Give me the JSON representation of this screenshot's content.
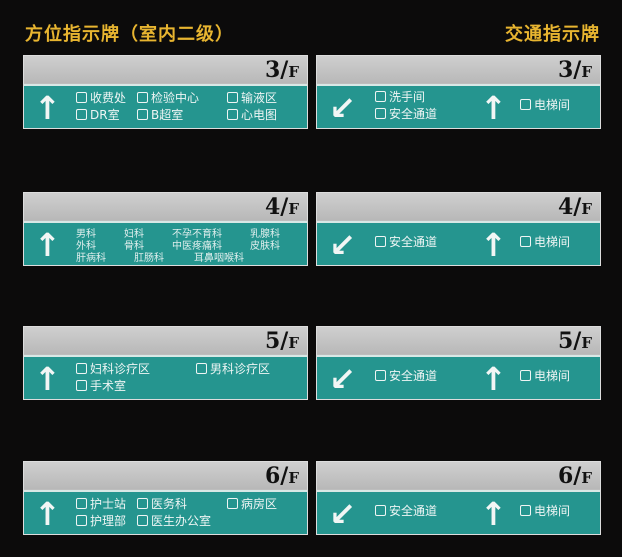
{
  "headings": {
    "left": "方位指示牌（室内二级）",
    "right": "交通指示牌"
  },
  "colors": {
    "heading": "#e8b530",
    "teal": "#25958f",
    "gray": "#bdbdbd"
  },
  "floor_suffix": "F",
  "left_signs": [
    {
      "floor": "3/",
      "arrow": "up",
      "items": [
        [
          "收费处",
          "检验中心",
          "输液区"
        ],
        [
          "DR室",
          "B超室",
          "心电图"
        ]
      ]
    },
    {
      "floor": "4/",
      "arrow": "up",
      "departments": [
        [
          "男科",
          "妇科",
          "不孕不育科",
          "乳腺科"
        ],
        [
          "外科",
          "骨科",
          "中医疼痛科",
          "皮肤科"
        ],
        [
          "肝病科",
          "肛肠科",
          "耳鼻咽喉科"
        ]
      ]
    },
    {
      "floor": "5/",
      "arrow": "up",
      "items": [
        [
          "妇科诊疗区",
          "男科诊疗区"
        ],
        [
          "手术室"
        ]
      ]
    },
    {
      "floor": "6/",
      "arrow": "up",
      "items": [
        [
          "护士站",
          "医务科",
          "病房区"
        ],
        [
          "护理部",
          "医生办公室"
        ]
      ]
    }
  ],
  "right_signs": [
    {
      "floor": "3/",
      "left_items": [
        "洗手间",
        "安全通道"
      ],
      "right_item": "电梯间"
    },
    {
      "floor": "4/",
      "left_items": [
        "安全通道"
      ],
      "right_item": "电梯间"
    },
    {
      "floor": "5/",
      "left_items": [
        "安全通道"
      ],
      "right_item": "电梯间"
    },
    {
      "floor": "6/",
      "left_items": [
        "安全通道"
      ],
      "right_item": "电梯间"
    }
  ]
}
